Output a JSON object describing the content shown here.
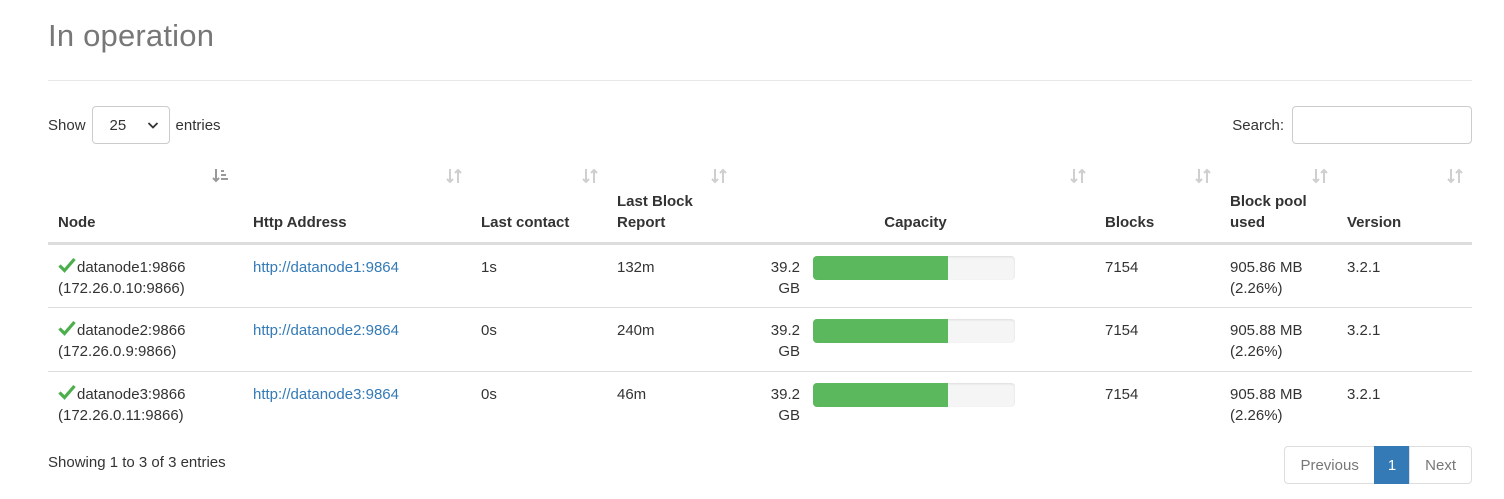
{
  "section": {
    "title": "In operation"
  },
  "length_menu": {
    "prefix": "Show",
    "value": "25",
    "suffix": "entries"
  },
  "search": {
    "label": "Search:",
    "value": "",
    "placeholder": ""
  },
  "table": {
    "headers": {
      "node": "Node",
      "http_address": "Http Address",
      "last_contact": "Last contact",
      "last_block_report": "Last Block Report",
      "capacity": "Capacity",
      "blocks": "Blocks",
      "block_pool_used": "Block pool used",
      "version": "Version"
    },
    "rows": [
      {
        "node": "datanode1:9866",
        "node_ip": "(172.26.0.10:9866)",
        "http": "http://datanode1:9864",
        "last_contact": "1s",
        "last_block_report": "132m",
        "capacity": "39.2 GB",
        "capacity_used_fraction": 0.67,
        "blocks": "7154",
        "pool_used": "905.86 MB",
        "pool_pct": "(2.26%)",
        "version": "3.2.1"
      },
      {
        "node": "datanode2:9866",
        "node_ip": "(172.26.0.9:9866)",
        "http": "http://datanode2:9864",
        "last_contact": "0s",
        "last_block_report": "240m",
        "capacity": "39.2 GB",
        "capacity_used_fraction": 0.67,
        "blocks": "7154",
        "pool_used": "905.88 MB",
        "pool_pct": "(2.26%)",
        "version": "3.2.1"
      },
      {
        "node": "datanode3:9866",
        "node_ip": "(172.26.0.11:9866)",
        "http": "http://datanode3:9864",
        "last_contact": "0s",
        "last_block_report": "46m",
        "capacity": "39.2 GB",
        "capacity_used_fraction": 0.67,
        "blocks": "7154",
        "pool_used": "905.88 MB",
        "pool_pct": "(2.26%)",
        "version": "3.2.1"
      }
    ]
  },
  "info": {
    "text": "Showing 1 to 3 of 3 entries"
  },
  "pagination": {
    "previous": "Previous",
    "current": "1",
    "next": "Next"
  },
  "colors": {
    "link": "#337ab7",
    "success": "#5cb85c",
    "check": "#4cae4c",
    "page_active": "#337ab7"
  },
  "icons": {
    "status": "check-icon",
    "sort": "sort-icon",
    "sort_active": "sort-asc-icon",
    "dropdown": "chevron-down-icon"
  }
}
